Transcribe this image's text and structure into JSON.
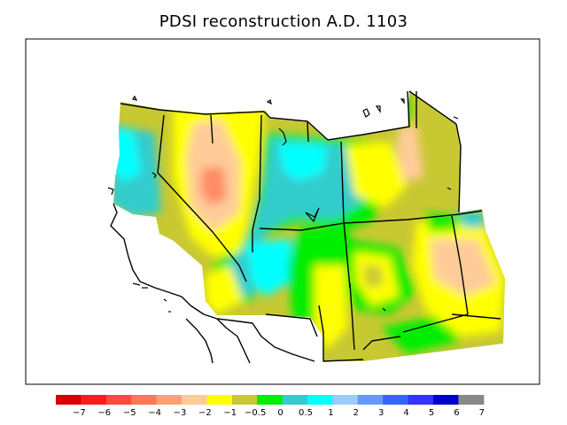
{
  "title": "PDSI reconstruction A.D. 1103",
  "legend": {
    "labels": [
      "-7",
      "-6",
      "-5",
      "-4",
      "-3",
      "-2",
      "-1",
      "-0.5",
      "0",
      "0.5",
      "1",
      "2",
      "3",
      "4",
      "5",
      "6",
      "7"
    ],
    "colors": [
      "#d40000",
      "#ff1a1a",
      "#ff4a3d",
      "#ff7755",
      "#ffa072",
      "#ffcc99",
      "#ffff00",
      "#c8c832",
      "#00ee00",
      "#33cccc",
      "#00ffff",
      "#99ccff",
      "#6699ff",
      "#3366ff",
      "#3333ff",
      "#0000cc",
      "#888888"
    ]
  },
  "palette": {
    "white": "#ffffff",
    "orange": "#ff8c66",
    "peach": "#ffcc99",
    "yellow": "#ffff00",
    "olive": "#c8c832",
    "green": "#00ee00",
    "teal": "#33cccc",
    "cyan": "#00ffff",
    "lightblue": "#99ccff"
  }
}
